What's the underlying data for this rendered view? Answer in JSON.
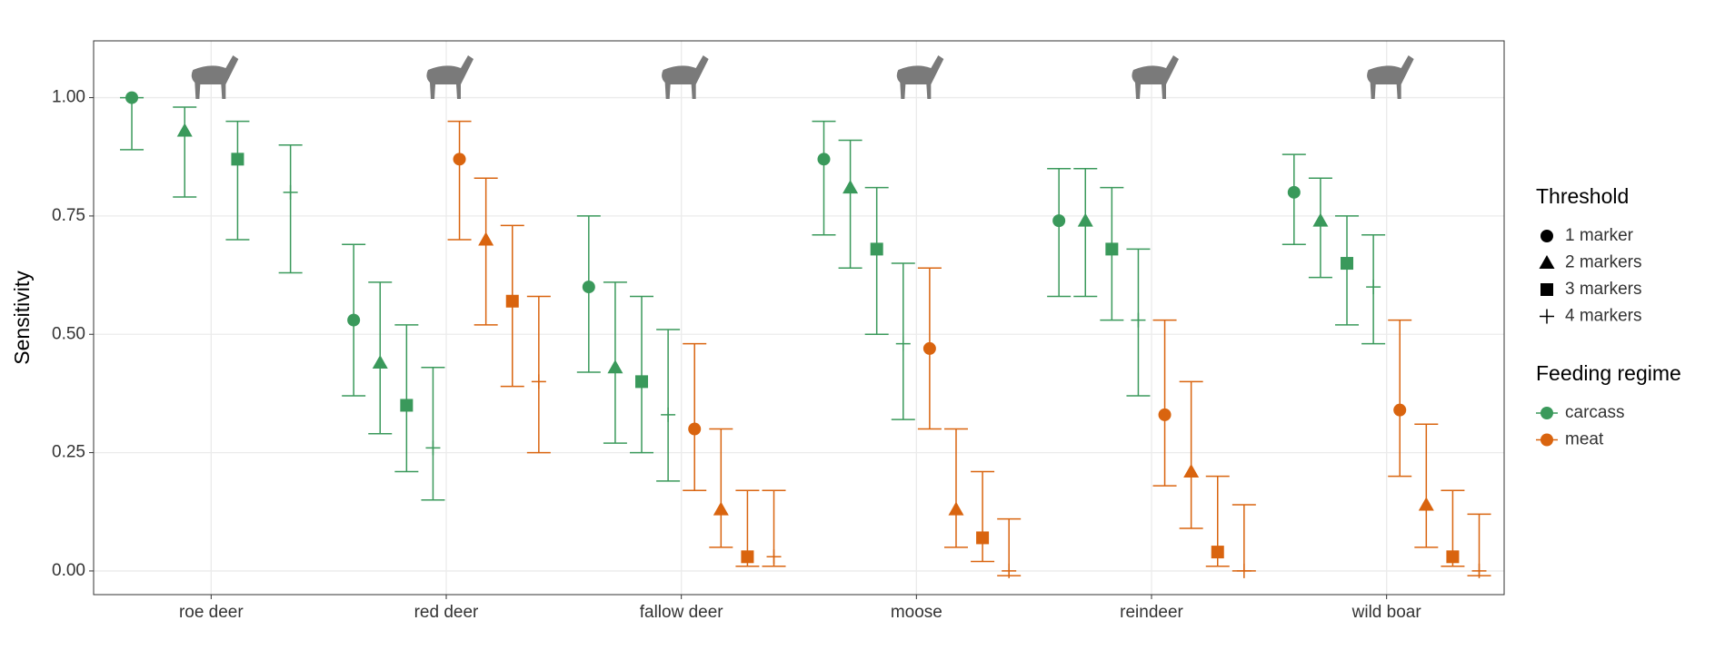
{
  "chart_data": {
    "type": "errorbar",
    "y_label": "Sensitivity",
    "categories": [
      "roe deer",
      "red deer",
      "fallow deer",
      "moose",
      "reindeer",
      "wild boar"
    ],
    "ylim": [
      -0.05,
      1.12
    ],
    "yticks": [
      {
        "value": 0,
        "label": "0.00"
      },
      {
        "value": 0.25,
        "label": "0.25"
      },
      {
        "value": 0.5,
        "label": "0.50"
      },
      {
        "value": 0.75,
        "label": "0.75"
      },
      {
        "value": 1,
        "label": "1.00"
      }
    ],
    "grid": true,
    "shape_legend": {
      "title": "Threshold",
      "entries": [
        {
          "name": "1 marker",
          "marker": "circle"
        },
        {
          "name": "2 markers",
          "marker": "triangle"
        },
        {
          "name": "3 markers",
          "marker": "square"
        },
        {
          "name": "4 markers",
          "marker": "plus"
        }
      ]
    },
    "color_legend": {
      "title": "Feeding regime",
      "entries": [
        {
          "name": "carcass",
          "color": "#3a995b"
        },
        {
          "name": "meat",
          "color": "#d9640f"
        }
      ]
    },
    "series": [
      {
        "regime": "carcass",
        "threshold": "1 marker",
        "values": [
          1.0,
          0.53,
          0.6,
          0.87,
          0.74,
          0.8
        ],
        "lower": [
          0.89,
          0.37,
          0.42,
          0.71,
          0.58,
          0.69
        ],
        "upper": [
          1.0,
          0.69,
          0.75,
          0.95,
          0.85,
          0.88
        ]
      },
      {
        "regime": "carcass",
        "threshold": "2 markers",
        "values": [
          0.93,
          0.44,
          0.43,
          0.81,
          0.74,
          0.74
        ],
        "lower": [
          0.79,
          0.29,
          0.27,
          0.64,
          0.58,
          0.62
        ],
        "upper": [
          0.98,
          0.61,
          0.61,
          0.91,
          0.85,
          0.83
        ]
      },
      {
        "regime": "carcass",
        "threshold": "3 markers",
        "values": [
          0.87,
          0.35,
          0.4,
          0.68,
          0.68,
          0.65
        ],
        "lower": [
          0.7,
          0.21,
          0.25,
          0.5,
          0.53,
          0.52
        ],
        "upper": [
          0.95,
          0.52,
          0.58,
          0.81,
          0.81,
          0.75
        ]
      },
      {
        "regime": "carcass",
        "threshold": "4 markers",
        "values": [
          0.8,
          0.26,
          0.33,
          0.48,
          0.53,
          0.6
        ],
        "lower": [
          0.63,
          0.15,
          0.19,
          0.32,
          0.37,
          0.48
        ],
        "upper": [
          0.9,
          0.43,
          0.51,
          0.65,
          0.68,
          0.71
        ]
      },
      {
        "regime": "meat",
        "threshold": "1 marker",
        "values": [
          null,
          0.87,
          0.3,
          0.47,
          0.33,
          0.34
        ],
        "lower": [
          null,
          0.7,
          0.17,
          0.3,
          0.18,
          0.2
        ],
        "upper": [
          null,
          0.95,
          0.48,
          0.64,
          0.53,
          0.53
        ]
      },
      {
        "regime": "meat",
        "threshold": "2 markers",
        "values": [
          null,
          0.7,
          0.13,
          0.13,
          0.21,
          0.14
        ],
        "lower": [
          null,
          0.52,
          0.05,
          0.05,
          0.09,
          0.05
        ],
        "upper": [
          null,
          0.83,
          0.3,
          0.3,
          0.4,
          0.31
        ]
      },
      {
        "regime": "meat",
        "threshold": "3 markers",
        "values": [
          null,
          0.57,
          0.03,
          0.07,
          0.04,
          0.03
        ],
        "lower": [
          null,
          0.39,
          0.01,
          0.02,
          0.01,
          0.01
        ],
        "upper": [
          null,
          0.73,
          0.17,
          0.21,
          0.2,
          0.17
        ]
      },
      {
        "regime": "meat",
        "threshold": "4 markers",
        "values": [
          null,
          0.4,
          0.03,
          0.0,
          0.0,
          0.0
        ],
        "lower": [
          null,
          0.25,
          0.01,
          -0.01,
          0.0,
          -0.01
        ],
        "upper": [
          null,
          0.58,
          0.17,
          0.11,
          0.14,
          0.12
        ]
      }
    ]
  }
}
